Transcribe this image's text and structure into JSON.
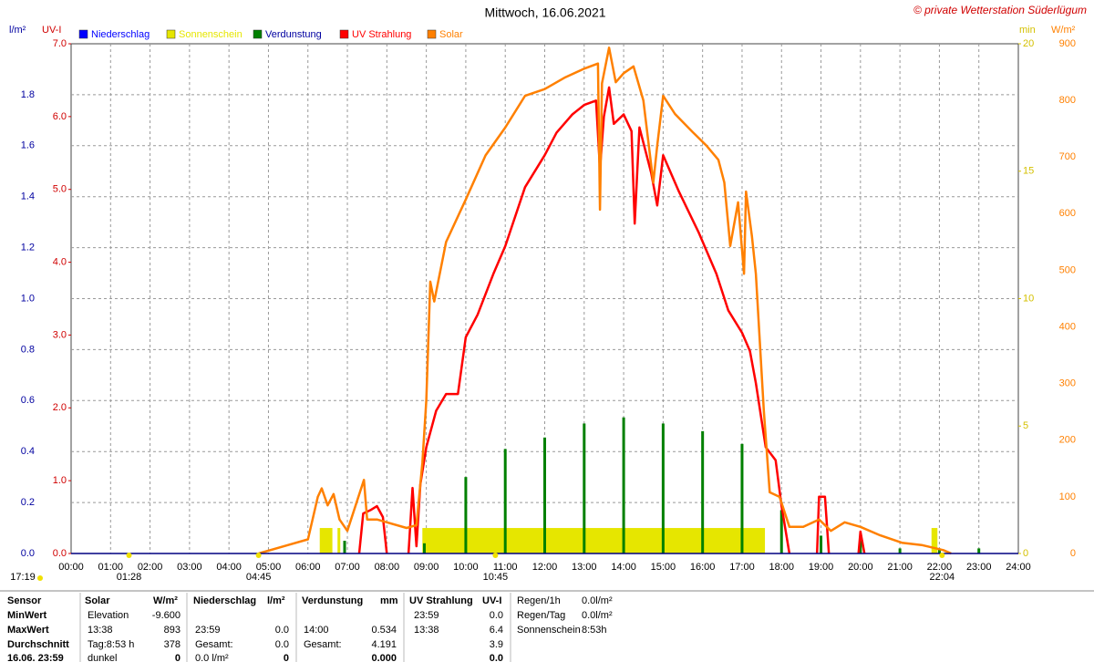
{
  "chart_data": {
    "type": "weather-day",
    "title": "Mittwoch, 16.06.2021",
    "copyright": "© private Wetterstation Süderlügum",
    "y_label": "l/m²",
    "uv_label": "UV-I",
    "y2_label": "min",
    "y3_label": "W/m²",
    "ylim": [
      0,
      2.0
    ],
    "uvlim": [
      0,
      7
    ],
    "y2lim": [
      0,
      20
    ],
    "y3lim": [
      0,
      900
    ],
    "xlim": [
      0,
      24
    ],
    "grid": true,
    "yticks": [
      {
        "value": 0,
        "label": "0.0"
      },
      {
        "value": 0.2,
        "label": "0.2"
      },
      {
        "value": 0.4,
        "label": "0.4"
      },
      {
        "value": 0.6,
        "label": "0.6"
      },
      {
        "value": 0.8,
        "label": "0.8"
      },
      {
        "value": 1.0,
        "label": "1.0"
      },
      {
        "value": 1.2,
        "label": "1.2"
      },
      {
        "value": 1.4,
        "label": "1.4"
      },
      {
        "value": 1.6,
        "label": "1.6"
      },
      {
        "value": 1.8,
        "label": "1.8"
      }
    ],
    "uvticks": [
      {
        "value": 0,
        "label": "0.0"
      },
      {
        "value": 1,
        "label": "1.0"
      },
      {
        "value": 2,
        "label": "2.0"
      },
      {
        "value": 3,
        "label": "3.0"
      },
      {
        "value": 4,
        "label": "4.0"
      },
      {
        "value": 5,
        "label": "5.0"
      },
      {
        "value": 6,
        "label": "6.0"
      },
      {
        "value": 7,
        "label": "7.0"
      }
    ],
    "y2ticks": [
      0,
      5,
      10,
      15,
      20
    ],
    "y3ticks": [
      0,
      100,
      200,
      300,
      400,
      500,
      600,
      700,
      800,
      900
    ],
    "xticks": [
      {
        "value": 0,
        "label": "00:00"
      },
      {
        "value": 1,
        "label": "01:00"
      },
      {
        "value": 2,
        "label": "02:00"
      },
      {
        "value": 3,
        "label": "03:00"
      },
      {
        "value": 4,
        "label": "04:00"
      },
      {
        "value": 5,
        "label": "05:00"
      },
      {
        "value": 6,
        "label": "06:00"
      },
      {
        "value": 7,
        "label": "07:00"
      },
      {
        "value": 8,
        "label": "08:00"
      },
      {
        "value": 9,
        "label": "09:00"
      },
      {
        "value": 10,
        "label": "10:00"
      },
      {
        "value": 11,
        "label": "11:00"
      },
      {
        "value": 12,
        "label": "12:00"
      },
      {
        "value": 13,
        "label": "13:00"
      },
      {
        "value": 14,
        "label": "14:00"
      },
      {
        "value": 15,
        "label": "15:00"
      },
      {
        "value": 16,
        "label": "16:00"
      },
      {
        "value": 17,
        "label": "17:00"
      },
      {
        "value": 18,
        "label": "18:00"
      },
      {
        "value": 19,
        "label": "19:00"
      },
      {
        "value": 20,
        "label": "20:00"
      },
      {
        "value": 21,
        "label": "21:00"
      },
      {
        "value": 22,
        "label": "22:00"
      },
      {
        "value": 23,
        "label": "23:00"
      },
      {
        "value": 24,
        "label": "24:00"
      }
    ],
    "annotations": [
      {
        "label": "17:19"
      },
      {
        "x": 1.467,
        "label": "01:28"
      },
      {
        "x": 4.75,
        "label": "04:45"
      },
      {
        "x": 10.75,
        "label": "10:45"
      },
      {
        "x": 22.067,
        "label": "22:04"
      }
    ],
    "series": [
      {
        "name": "Niederschlag",
        "color": "#0000ff",
        "axis": "y"
      },
      {
        "name": "Sonnenschein",
        "color": "#e6e600",
        "axis": "y2",
        "x_start": [
          6.3,
          6.75,
          8.9,
          21.8
        ],
        "x_end": [
          6.62,
          6.82,
          17.58,
          21.95
        ],
        "values": [
          1.0,
          1.0,
          1.0,
          1.0
        ]
      },
      {
        "name": "Verdunstung",
        "color": "#008000",
        "axis": "y",
        "x": [
          6.93,
          8.95,
          10.0,
          11.0,
          12.0,
          13.0,
          14.0,
          15.0,
          16.0,
          17.0,
          18.0,
          19.0,
          20.0,
          21.0,
          22.0,
          23.0
        ],
        "values": [
          0.05,
          0.04,
          0.3,
          0.41,
          0.455,
          0.51,
          0.534,
          0.51,
          0.48,
          0.43,
          0.17,
          0.07,
          0.05,
          0.02,
          0.02,
          0.02
        ]
      },
      {
        "name": "UV Strahlung",
        "color": "#ff0000",
        "axis": "uv",
        "x": [
          7.3,
          7.4,
          7.6,
          7.75,
          7.9,
          8.0,
          8.2,
          8.55,
          8.65,
          8.75,
          8.85,
          9.0,
          9.25,
          9.5,
          9.8,
          10.0,
          10.3,
          10.7,
          11.0,
          11.5,
          12.0,
          12.3,
          12.7,
          13.0,
          13.3,
          13.4,
          13.5,
          13.63,
          13.75,
          14.0,
          14.2,
          14.28,
          14.4,
          14.7,
          14.85,
          15.0,
          15.4,
          15.9,
          16.35,
          16.65,
          17.0,
          17.2,
          17.35,
          17.6,
          17.85,
          18.0,
          18.2,
          18.5,
          18.9,
          18.95,
          19.1,
          19.2,
          19.5,
          19.95,
          20.0,
          20.1
        ],
        "values": [
          0,
          0.55,
          0.6,
          0.65,
          0.5,
          0,
          null,
          0,
          0.9,
          0.1,
          0.95,
          1.46,
          1.96,
          2.19,
          2.19,
          2.97,
          3.28,
          3.84,
          4.22,
          5.03,
          5.47,
          5.78,
          6.03,
          6.16,
          6.22,
          5.28,
          6.0,
          6.4,
          5.9,
          6.03,
          5.8,
          4.53,
          5.85,
          5.22,
          4.78,
          5.47,
          4.97,
          4.41,
          3.84,
          3.34,
          3.03,
          2.78,
          2.34,
          1.46,
          1.28,
          0.65,
          0,
          null,
          0,
          0.78,
          0.78,
          0,
          null,
          0,
          0.3,
          0
        ]
      },
      {
        "name": "Solar",
        "color": "#ff8000",
        "axis": "y3",
        "x": [
          4.75,
          5.5,
          6.0,
          6.25,
          6.35,
          6.5,
          6.65,
          6.8,
          7.0,
          7.42,
          7.5,
          7.75,
          8.0,
          8.5,
          8.75,
          8.9,
          9.0,
          9.1,
          9.2,
          9.5,
          10.0,
          10.5,
          11.0,
          11.5,
          12.0,
          12.5,
          13.0,
          13.35,
          13.4,
          13.45,
          13.63,
          13.8,
          14.0,
          14.25,
          14.5,
          14.75,
          14.85,
          15.0,
          15.3,
          15.75,
          16.1,
          16.4,
          16.55,
          16.7,
          16.9,
          17.05,
          17.1,
          17.25,
          17.35,
          17.55,
          17.7,
          17.95,
          18.2,
          18.55,
          18.95,
          19.25,
          19.6,
          20.0,
          20.5,
          21.05,
          21.55,
          22.1,
          22.3
        ],
        "values": [
          0,
          15,
          25,
          100,
          115,
          85,
          105,
          60,
          40,
          130,
          60,
          60,
          55,
          45,
          50,
          160,
          270,
          480,
          445,
          550,
          625,
          703,
          752,
          808,
          820,
          840,
          856,
          865,
          607,
          830,
          893,
          832,
          848,
          860,
          800,
          655,
          720,
          808,
          776,
          744,
          720,
          695,
          655,
          543,
          620,
          494,
          639,
          560,
          494,
          253,
          108,
          100,
          47,
          47,
          60,
          40,
          55,
          47,
          32,
          19,
          15,
          6,
          0
        ]
      }
    ]
  },
  "table": {
    "sensor": [
      "Sensor",
      "MinWert",
      "MaxWert",
      "Durchschnitt",
      "16.06. 23:59"
    ],
    "solar": {
      "header": [
        "Solar",
        "W/m²"
      ],
      "rows": [
        [
          "Elevation",
          "-9.600"
        ],
        [
          "13:38",
          "893"
        ],
        [
          "Tag:8:53 h",
          "378"
        ],
        [
          "dunkel",
          "0"
        ]
      ]
    },
    "niederschlag": {
      "header": [
        "Niederschlag",
        "l/m²"
      ],
      "rows": [
        [
          "23:59",
          "0.0"
        ],
        [
          "Gesamt:",
          "0.0"
        ],
        [
          "0.0 l/m²",
          "0"
        ]
      ]
    },
    "verdunstung": {
      "header": [
        "Verdunstung",
        "mm"
      ],
      "rows": [
        [
          "14:00",
          "0.534"
        ],
        [
          "Gesamt:",
          "4.191"
        ],
        [
          "0.000"
        ]
      ]
    },
    "uv": {
      "header": [
        "UV Strahlung",
        "UV-I"
      ],
      "rows": [
        [
          "23:59",
          "0.0"
        ],
        [
          "13:38",
          "6.4"
        ],
        [
          "3.9"
        ],
        [
          "0.0"
        ]
      ]
    },
    "regen": [
      [
        "Regen/1h",
        "0.0l/m²"
      ],
      [
        "Regen/Tag",
        "0.0l/m²"
      ],
      [
        "Sonnenschein",
        "8:53h"
      ]
    ]
  }
}
